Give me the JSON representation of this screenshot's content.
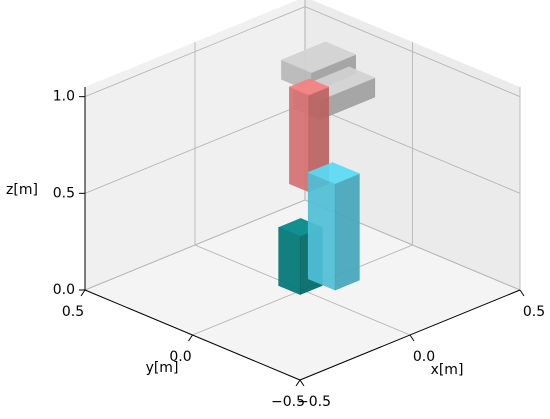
{
  "chart_data": {
    "type": "voxel3d",
    "xlabel": "x[m]",
    "ylabel": "y[m]",
    "zlabel": "z[m]",
    "xlim": [
      -0.5,
      0.5
    ],
    "ylim": [
      -0.5,
      0.5
    ],
    "zlim": [
      0,
      1.05
    ],
    "xticks": [
      {
        "value": -0.5,
        "label": "−0.5"
      },
      {
        "value": 0,
        "label": "0.0"
      },
      {
        "value": 0.5,
        "label": "0.5"
      }
    ],
    "yticks": [
      {
        "value": -0.5,
        "label": "−0.5"
      },
      {
        "value": 0,
        "label": "0.0"
      },
      {
        "value": 0.5,
        "label": "0.5"
      }
    ],
    "zticks": [
      {
        "value": 0,
        "label": "0.0"
      },
      {
        "value": 0.5,
        "label": "0.5"
      },
      {
        "value": 1,
        "label": "1.0"
      }
    ],
    "grid": true,
    "boxes": [
      {
        "x": [
          0.1,
          0.3
        ],
        "y": [
          0.06,
          0.2
        ],
        "z": [
          0.95,
          1.05
        ],
        "color": "#c8c8c8"
      },
      {
        "x": [
          0.02,
          0.27
        ],
        "y": [
          -0.06,
          0.06
        ],
        "z": [
          0.9,
          1.0
        ],
        "color": "#c8c8c8"
      },
      {
        "x": [
          -0.03,
          0.06
        ],
        "y": [
          -0.06,
          0.03
        ],
        "z": [
          0.55,
          1.05
        ],
        "color": "#e8797a"
      },
      {
        "x": [
          -0.03,
          0.07
        ],
        "y": [
          -0.02,
          0.08
        ],
        "z": [
          0,
          0.3
        ],
        "color": "#008080"
      },
      {
        "x": [
          0.075,
          0.185
        ],
        "y": [
          -0.075,
          0.05
        ],
        "z": [
          0,
          0.55
        ],
        "color": "#56cfe9"
      }
    ]
  }
}
